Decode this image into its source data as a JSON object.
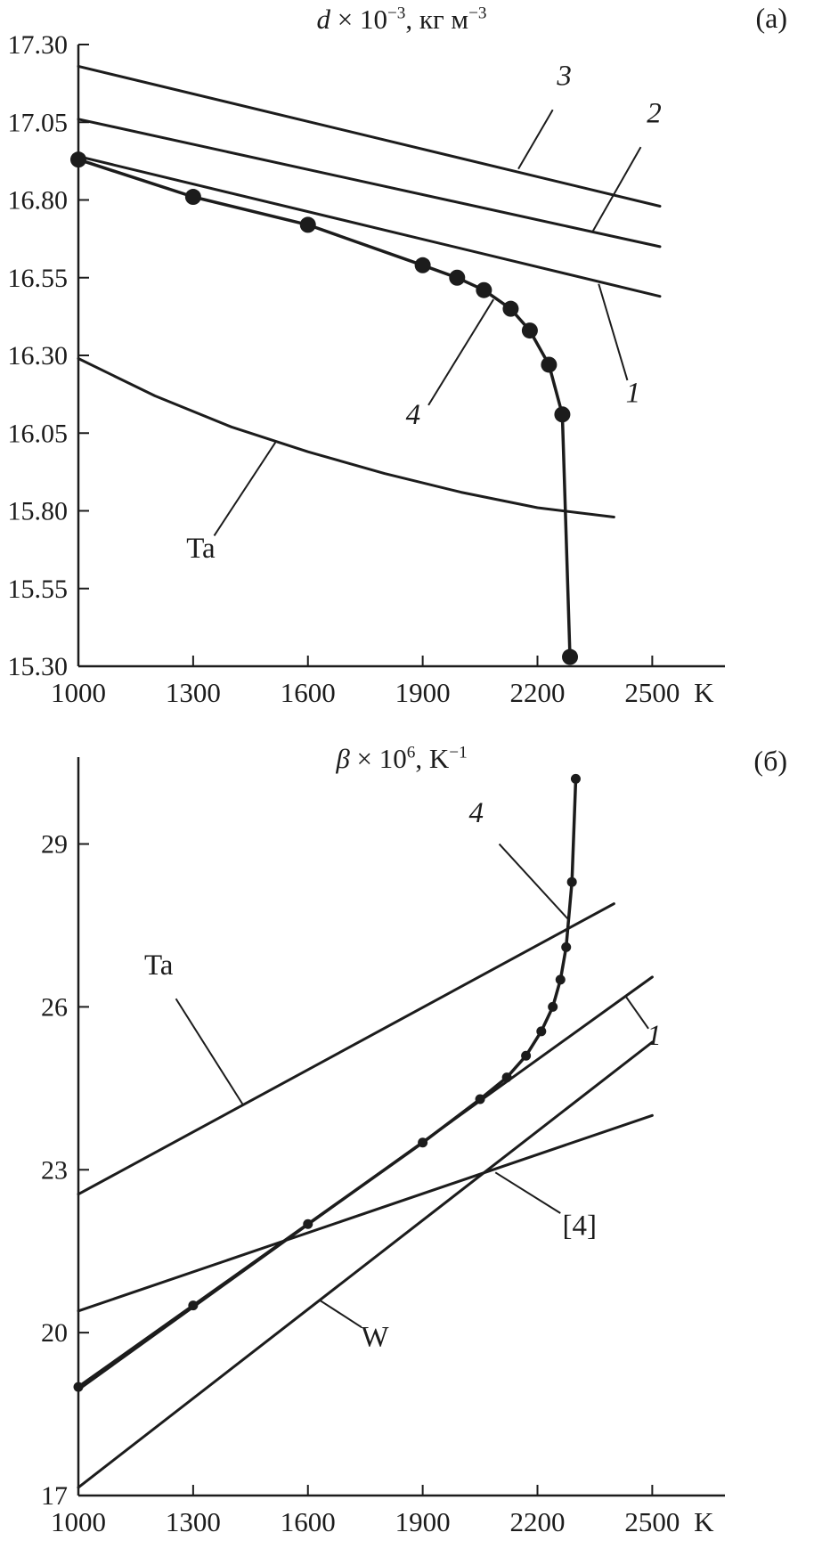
{
  "colors": {
    "ink": "#1c1c1c",
    "background": "#ffffff"
  },
  "chart_data": [
    {
      "type": "line",
      "panel_label": "(а)",
      "title_plain": "d × 10⁻³, кг м⁻³",
      "title": {
        "var": "d",
        "mid": " × 10",
        "sup": "−3",
        "tail": ", кг м",
        "sup2": "−3"
      },
      "x_unit": "K",
      "xlim": [
        1000,
        2690
      ],
      "ylim": [
        15.3,
        17.3
      ],
      "grid": false,
      "x_ticks": {
        "values": [
          1000,
          1300,
          1600,
          1900,
          2200,
          2500
        ],
        "labels": [
          "1000",
          "1300",
          "1600",
          "1900",
          "2200",
          "2500"
        ]
      },
      "y_ticks": {
        "values": [
          15.3,
          15.55,
          15.8,
          16.05,
          16.3,
          16.55,
          16.8,
          17.05,
          17.3
        ],
        "labels": [
          "15.30",
          "15.55",
          "15.80",
          "16.05",
          "16.30",
          "16.55",
          "16.80",
          "17.05",
          "17.30"
        ]
      },
      "series": [
        {
          "name": "3",
          "kind": "line",
          "width": 3,
          "points": [
            [
              1000,
              17.23
            ],
            [
              2520,
              16.78
            ]
          ]
        },
        {
          "name": "2",
          "kind": "line",
          "width": 3,
          "points": [
            [
              1000,
              17.06
            ],
            [
              2520,
              16.65
            ]
          ]
        },
        {
          "name": "1",
          "kind": "line",
          "width": 3,
          "points": [
            [
              1000,
              16.94
            ],
            [
              2520,
              16.49
            ]
          ]
        },
        {
          "name": "Ta",
          "kind": "line",
          "width": 3,
          "points": [
            [
              1000,
              16.29
            ],
            [
              1200,
              16.17
            ],
            [
              1400,
              16.07
            ],
            [
              1600,
              15.99
            ],
            [
              1800,
              15.92
            ],
            [
              2000,
              15.86
            ],
            [
              2200,
              15.81
            ],
            [
              2400,
              15.78
            ]
          ]
        },
        {
          "name": "4",
          "kind": "scatter-line",
          "width": 3.5,
          "dot_r": 9,
          "points": [
            [
              1000,
              16.93
            ],
            [
              1300,
              16.81
            ],
            [
              1600,
              16.72
            ],
            [
              1900,
              16.59
            ],
            [
              1990,
              16.55
            ],
            [
              2060,
              16.51
            ],
            [
              2130,
              16.45
            ],
            [
              2180,
              16.38
            ],
            [
              2230,
              16.27
            ],
            [
              2265,
              16.11
            ],
            [
              2285,
              15.33
            ]
          ]
        }
      ],
      "annotations": [
        {
          "text": "3",
          "italic": true,
          "tx": 2270,
          "ty": 17.17,
          "sx": 2240,
          "sy": 17.09,
          "lx": 2150,
          "ly": 16.9
        },
        {
          "text": "2",
          "italic": true,
          "tx": 2505,
          "ty": 17.05,
          "sx": 2470,
          "sy": 16.97,
          "lx": 2345,
          "ly": 16.7
        },
        {
          "text": "1",
          "italic": true,
          "tx": 2450,
          "ty": 16.15,
          "sx": 2435,
          "sy": 16.22,
          "lx": 2360,
          "ly": 16.53
        },
        {
          "text": "4",
          "italic": true,
          "tx": 1875,
          "ty": 16.08,
          "sx": 1915,
          "sy": 16.14,
          "lx": 2085,
          "ly": 16.48
        },
        {
          "text": "Ta",
          "italic": false,
          "tx": 1320,
          "ty": 15.65,
          "sx": 1355,
          "sy": 15.72,
          "lx": 1515,
          "ly": 16.02
        }
      ]
    },
    {
      "type": "line",
      "panel_label": "(б)",
      "title_plain": "β × 10⁶, K⁻¹",
      "title": {
        "var": "β",
        "mid": " × 10",
        "sup": "6",
        "tail": ", K",
        "sup2": "−1"
      },
      "x_unit": "K",
      "xlim": [
        1000,
        2690
      ],
      "ylim": [
        17,
        30.6
      ],
      "grid": false,
      "x_ticks": {
        "values": [
          1000,
          1300,
          1600,
          1900,
          2200,
          2500
        ],
        "labels": [
          "1000",
          "1300",
          "1600",
          "1900",
          "2200",
          "2500"
        ]
      },
      "y_ticks": {
        "values": [
          17,
          20,
          23,
          26,
          29
        ],
        "labels": [
          "17",
          "20",
          "23",
          "26",
          "29"
        ]
      },
      "series": [
        {
          "name": "Ta",
          "kind": "line",
          "width": 3,
          "points": [
            [
              1000,
              22.55
            ],
            [
              2400,
              27.9
            ]
          ]
        },
        {
          "name": "1",
          "kind": "line",
          "width": 3,
          "points": [
            [
              1000,
              18.95
            ],
            [
              2500,
              26.55
            ]
          ]
        },
        {
          "name": "W",
          "kind": "line",
          "width": 3,
          "points": [
            [
              1000,
              17.15
            ],
            [
              2500,
              25.35
            ]
          ]
        },
        {
          "name": "[4]",
          "kind": "line",
          "width": 3,
          "points": [
            [
              1000,
              20.4
            ],
            [
              2500,
              24.0
            ]
          ]
        },
        {
          "name": "4",
          "kind": "scatter-line",
          "width": 3.5,
          "dot_r": 5.5,
          "points": [
            [
              1000,
              19.0
            ],
            [
              1300,
              20.5
            ],
            [
              1600,
              22.0
            ],
            [
              1900,
              23.5
            ],
            [
              2050,
              24.3
            ],
            [
              2120,
              24.7
            ],
            [
              2170,
              25.1
            ],
            [
              2210,
              25.55
            ],
            [
              2240,
              26.0
            ],
            [
              2260,
              26.5
            ],
            [
              2275,
              27.1
            ],
            [
              2290,
              28.3
            ],
            [
              2300,
              30.2
            ]
          ]
        }
      ],
      "annotations": [
        {
          "text": "4",
          "italic": true,
          "tx": 2040,
          "ty": 29.4,
          "sx": 2100,
          "sy": 29.0,
          "lx": 2282,
          "ly": 27.6
        },
        {
          "text": "Ta",
          "italic": false,
          "tx": 1210,
          "ty": 26.6,
          "sx": 1255,
          "sy": 26.15,
          "lx": 1430,
          "ly": 24.2
        },
        {
          "text": "1",
          "italic": true,
          "tx": 2505,
          "ty": 25.3,
          "sx": 2490,
          "sy": 25.6,
          "lx": 2430,
          "ly": 26.2
        },
        {
          "text": "[4]",
          "italic": false,
          "tx": 2310,
          "ty": 21.8,
          "sx": 2260,
          "sy": 22.2,
          "lx": 2090,
          "ly": 22.95
        },
        {
          "text": "W",
          "italic": false,
          "tx": 1775,
          "ty": 19.75,
          "sx": 1740,
          "sy": 20.1,
          "lx": 1630,
          "ly": 20.6
        }
      ]
    }
  ]
}
